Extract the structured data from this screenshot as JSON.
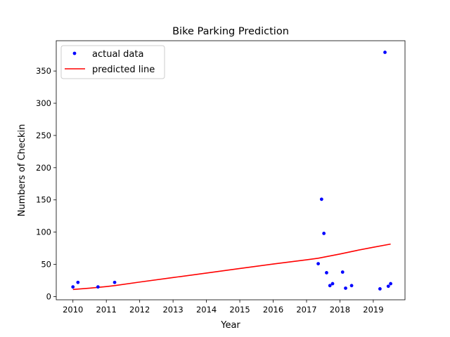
{
  "chart_data": {
    "type": "scatter",
    "title": "Bike Parking Prediction",
    "xlabel": "Year",
    "ylabel": "Numbers of Checkin",
    "xlim": [
      2009.5,
      2019.95
    ],
    "ylim": [
      -5,
      397
    ],
    "xticks": [
      2010,
      2011,
      2012,
      2013,
      2014,
      2015,
      2016,
      2017,
      2018,
      2019
    ],
    "xtick_labels": [
      "2010",
      "2011",
      "2012",
      "2013",
      "2014",
      "2015",
      "2016",
      "2017",
      "2018",
      "2019"
    ],
    "yticks": [
      0,
      50,
      100,
      150,
      200,
      250,
      300,
      350
    ],
    "ytick_labels": [
      "0",
      "50",
      "100",
      "150",
      "200",
      "250",
      "300",
      "350"
    ],
    "grid": false,
    "legend_position": "upper-left",
    "series": [
      {
        "name": "actual data",
        "kind": "points",
        "color": "#0000ff",
        "points": [
          [
            2010.0,
            15
          ],
          [
            2010.15,
            22
          ],
          [
            2010.75,
            15
          ],
          [
            2011.25,
            22
          ],
          [
            2017.35,
            51
          ],
          [
            2017.45,
            151
          ],
          [
            2017.52,
            98
          ],
          [
            2017.6,
            37
          ],
          [
            2017.7,
            17
          ],
          [
            2017.78,
            20
          ],
          [
            2018.08,
            38
          ],
          [
            2018.17,
            13
          ],
          [
            2018.35,
            17
          ],
          [
            2019.2,
            12
          ],
          [
            2019.35,
            379
          ],
          [
            2019.45,
            16
          ],
          [
            2019.52,
            20
          ]
        ]
      },
      {
        "name": "predicted line",
        "kind": "line",
        "color": "#ff0000",
        "points": [
          [
            2010.0,
            11
          ],
          [
            2010.5,
            13
          ],
          [
            2011.0,
            15.5
          ],
          [
            2011.25,
            17
          ],
          [
            2012.0,
            22.5
          ],
          [
            2013.0,
            29.5
          ],
          [
            2014.0,
            36.5
          ],
          [
            2015.0,
            43.5
          ],
          [
            2016.0,
            50.5
          ],
          [
            2017.0,
            57
          ],
          [
            2017.35,
            59.5
          ],
          [
            2018.0,
            66
          ],
          [
            2018.5,
            71.5
          ],
          [
            2019.0,
            76.5
          ],
          [
            2019.52,
            81.5
          ]
        ]
      }
    ]
  }
}
